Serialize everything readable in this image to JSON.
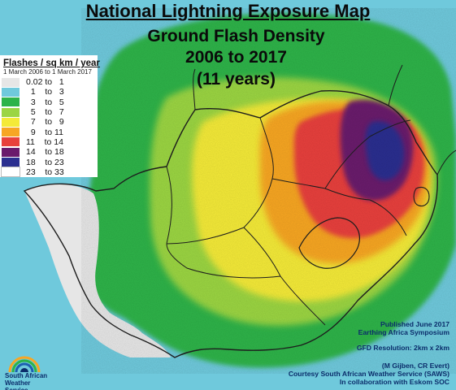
{
  "header": {
    "title": "National Lightning Exposure Map",
    "subtitle_line1": "Ground Flash Density",
    "subtitle_line2": "2006 to 2017",
    "subtitle_line3": "(11 years)"
  },
  "legend": {
    "title": "Flashes / sq km / year",
    "period": "1 March 2006 to 1 March 2017",
    "classes": [
      {
        "label": "0.02 to   1",
        "color": "#e6e6e6"
      },
      {
        "label": "  1    to   3",
        "color": "#6fc9dc"
      },
      {
        "label": "  3    to   5",
        "color": "#2db34a"
      },
      {
        "label": "  5    to   7",
        "color": "#9bd543"
      },
      {
        "label": "  7    to   9",
        "color": "#f4ea38"
      },
      {
        "label": "  9    to 11",
        "color": "#f7a623"
      },
      {
        "label": "11    to 14",
        "color": "#e8413c"
      },
      {
        "label": "14    to 18",
        "color": "#6a1a6c"
      },
      {
        "label": "18    to 23",
        "color": "#2b2f8f"
      },
      {
        "label": "23    to 33",
        "color": "#ffffff"
      }
    ]
  },
  "notes": {
    "published": "Published June 2017",
    "symposium": "Earthing Africa Symposium",
    "resolution": "GFD Resolution: 2km x 2km",
    "authors": "(M Gijben, CR Evert)",
    "courtesy": "Courtesy South African Weather Service (SAWS)",
    "collaboration": "In collaboration with Eskom SOC"
  },
  "logo": {
    "line1": "South African",
    "line2": "Weather Service"
  },
  "colors": {
    "ocean": "#6fc9dc",
    "land_low": "#2db34a",
    "accent_text": "#0b2d6b"
  }
}
